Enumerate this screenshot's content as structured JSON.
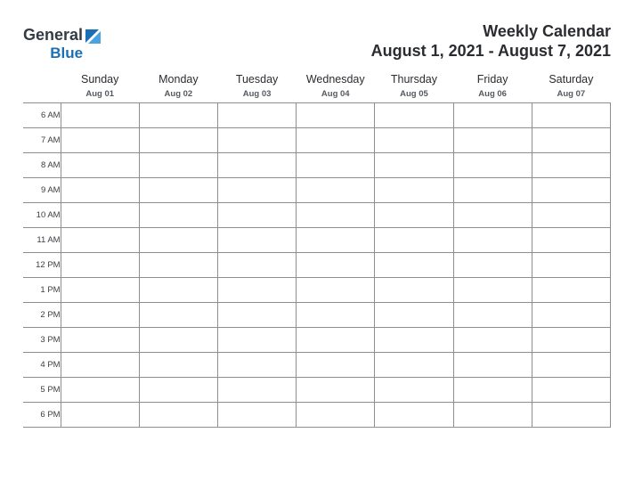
{
  "logo": {
    "word1": "General",
    "word2": "Blue",
    "color_general": "#333b45",
    "color_blue": "#1b6fb5",
    "tri_color": "#1b6fb5"
  },
  "header": {
    "title": "Weekly Calendar",
    "date_range": "August 1, 2021 - August 7, 2021"
  },
  "calendar": {
    "grid_color": "#8e8e8e",
    "days": [
      {
        "name": "Sunday",
        "date": "Aug 01"
      },
      {
        "name": "Monday",
        "date": "Aug 02"
      },
      {
        "name": "Tuesday",
        "date": "Aug 03"
      },
      {
        "name": "Wednesday",
        "date": "Aug 04"
      },
      {
        "name": "Thursday",
        "date": "Aug 05"
      },
      {
        "name": "Friday",
        "date": "Aug 06"
      },
      {
        "name": "Saturday",
        "date": "Aug 07"
      }
    ],
    "hours": [
      "6 AM",
      "7 AM",
      "8 AM",
      "9 AM",
      "10 AM",
      "11 AM",
      "12 PM",
      "1 PM",
      "2 PM",
      "3 PM",
      "4 PM",
      "5 PM",
      "6 PM"
    ]
  }
}
